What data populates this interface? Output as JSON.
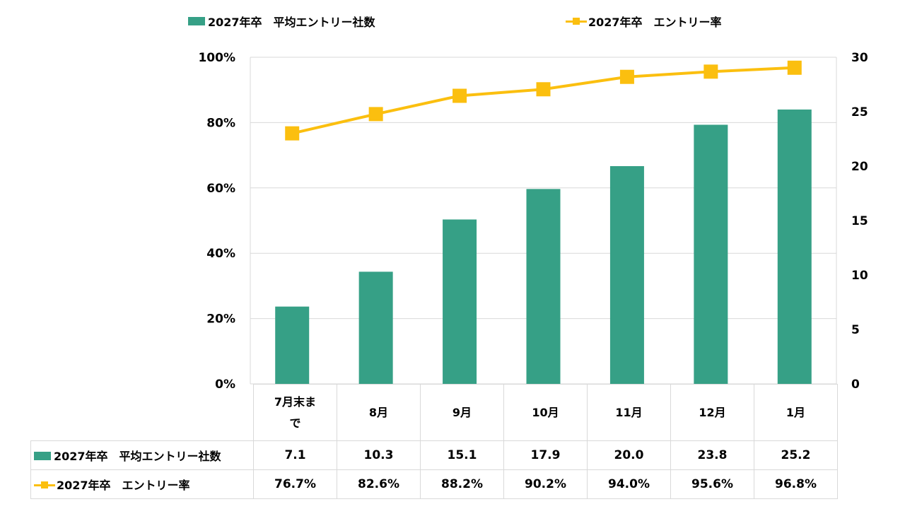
{
  "chart_data": {
    "type": "bar+line",
    "title": "",
    "categories": [
      "7月末まで",
      "8月",
      "9月",
      "10月",
      "11月",
      "12月",
      "1月"
    ],
    "series": [
      {
        "name": "2027年卒　平均エントリー社数",
        "type": "bar",
        "axis": "right",
        "values": [
          7.1,
          10.3,
          15.1,
          17.9,
          20.0,
          23.8,
          25.2
        ],
        "labels": [
          "7.1",
          "10.3",
          "15.1",
          "17.9",
          "20.0",
          "23.8",
          "25.2"
        ],
        "color": "#36a086"
      },
      {
        "name": "2027年卒　エントリー率",
        "type": "line",
        "axis": "left",
        "values": [
          76.7,
          82.6,
          88.2,
          90.2,
          94.0,
          95.6,
          96.8
        ],
        "labels": [
          "76.7%",
          "82.6%",
          "88.2%",
          "90.2%",
          "94.0%",
          "95.6%",
          "96.8%"
        ],
        "color": "#fbbf0f",
        "marker": "square"
      }
    ],
    "left_axis": {
      "range": [
        0,
        100
      ],
      "ticks": [
        "0%",
        "20%",
        "40%",
        "60%",
        "80%",
        "100%"
      ]
    },
    "right_axis": {
      "range": [
        0,
        30
      ],
      "ticks": [
        "0",
        "5",
        "10",
        "15",
        "20",
        "25",
        "30"
      ]
    },
    "grid": true,
    "legend_position": "top",
    "data_table": true
  },
  "legend": {
    "bar": "2027年卒　平均エントリー社数",
    "line": "2027年卒　エントリー率"
  }
}
